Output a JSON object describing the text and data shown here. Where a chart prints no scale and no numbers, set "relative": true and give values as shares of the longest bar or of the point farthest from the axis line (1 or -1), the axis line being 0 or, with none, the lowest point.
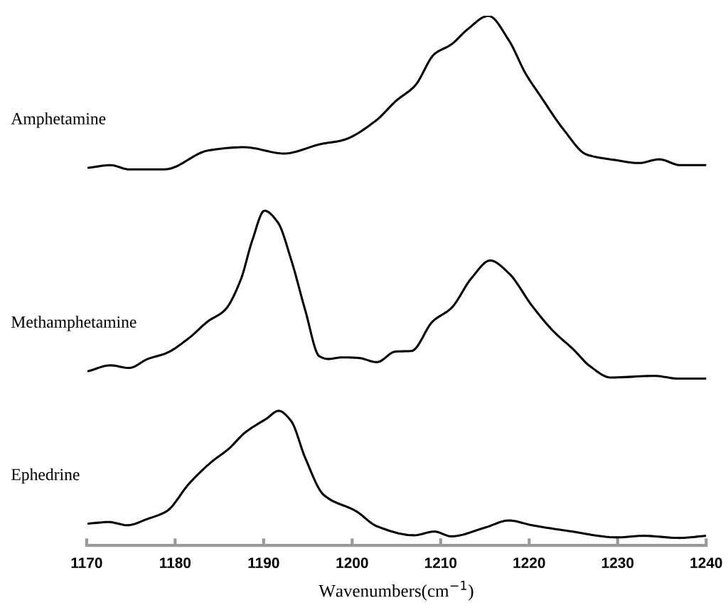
{
  "chart_data": {
    "type": "line",
    "relative": true,
    "xlabel": "Wavenumbers(cm$^{−1}$)",
    "xlim": [
      1170,
      1240
    ],
    "xticks": [
      1170,
      1180,
      1190,
      1200,
      1210,
      1220,
      1230,
      1240
    ],
    "tick_labels": "x",
    "grid": false,
    "legend": false,
    "line_style": "solid",
    "series": [
      {
        "name": "Amphetamine",
        "color": "#000000",
        "x": [
          1170.2,
          1172.7,
          1174.8,
          1178.8,
          1183.8,
          1187.8,
          1192.3,
          1196.5,
          1198.9,
          1202.6,
          1205.0,
          1207.1,
          1209.3,
          1211.2,
          1213.0,
          1215.4,
          1217.7,
          1219.6,
          1221.3,
          1223.9,
          1226.5,
          1229.6,
          1232.4,
          1234.7,
          1237.1,
          1240.0
        ],
        "values": [
          0.713,
          0.718,
          0.71,
          0.71,
          0.746,
          0.752,
          0.74,
          0.758,
          0.765,
          0.801,
          0.84,
          0.868,
          0.928,
          0.946,
          0.974,
          1.0,
          0.954,
          0.891,
          0.848,
          0.785,
          0.738,
          0.728,
          0.722,
          0.729,
          0.718,
          0.718
        ]
      },
      {
        "name": "Methamphetamine",
        "color": "#000000",
        "x": [
          1170.2,
          1172.7,
          1174.8,
          1176.9,
          1179.0,
          1181.6,
          1183.7,
          1185.6,
          1187.4,
          1188.7,
          1190.1,
          1191.6,
          1193.1,
          1194.7,
          1196.3,
          1197.3,
          1198.9,
          1200.7,
          1202.8,
          1204.9,
          1206.7,
          1209.1,
          1211.2,
          1213.5,
          1215.6,
          1217.7,
          1220.3,
          1222.7,
          1225.0,
          1226.9,
          1229.2,
          1234.2,
          1236.8,
          1240.0
        ],
        "values": [
          0.329,
          0.34,
          0.335,
          0.352,
          0.363,
          0.392,
          0.423,
          0.444,
          0.501,
          0.575,
          0.632,
          0.61,
          0.54,
          0.444,
          0.357,
          0.352,
          0.355,
          0.354,
          0.346,
          0.366,
          0.367,
          0.423,
          0.448,
          0.505,
          0.538,
          0.514,
          0.453,
          0.405,
          0.37,
          0.338,
          0.317,
          0.32,
          0.315,
          0.315
        ]
      },
      {
        "name": "Ephedrine",
        "color": "#000000",
        "x": [
          1170.2,
          1172.5,
          1174.6,
          1176.9,
          1179.0,
          1181.6,
          1184.0,
          1186.1,
          1187.9,
          1190.3,
          1191.7,
          1193.1,
          1194.7,
          1196.8,
          1200.5,
          1202.8,
          1207.0,
          1209.3,
          1211.2,
          1215.1,
          1217.7,
          1220.3,
          1224.5,
          1230.0,
          1232.9,
          1237.0,
          1239.9
        ],
        "values": [
          0.041,
          0.044,
          0.038,
          0.05,
          0.064,
          0.117,
          0.156,
          0.183,
          0.213,
          0.239,
          0.254,
          0.235,
          0.165,
          0.095,
          0.064,
          0.036,
          0.019,
          0.026,
          0.017,
          0.034,
          0.047,
          0.038,
          0.027,
          0.015,
          0.018,
          0.014,
          0.018
        ]
      }
    ]
  }
}
